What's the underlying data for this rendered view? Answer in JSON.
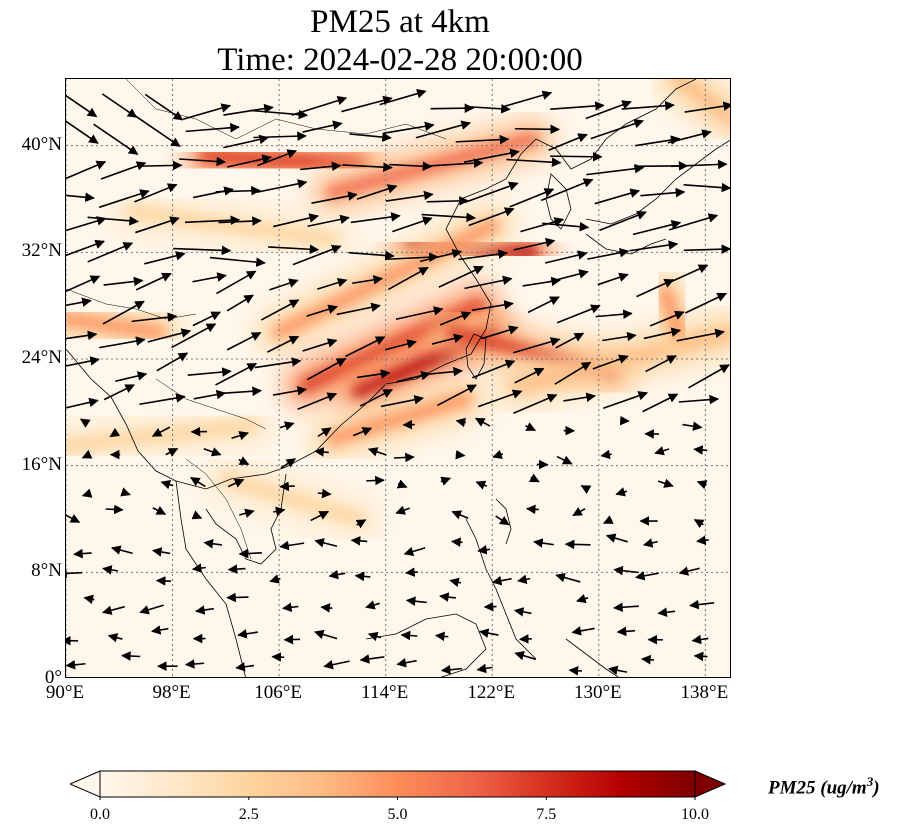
{
  "title": {
    "line1": "PM25 at 4km",
    "line2": "Time: 2024-02-28 20:00:00"
  },
  "map": {
    "extent": {
      "lon": [
        90,
        140
      ],
      "lat": [
        0,
        45
      ]
    },
    "x_ticks": [
      "90°E",
      "98°E",
      "106°E",
      "114°E",
      "122°E",
      "130°E",
      "138°E"
    ],
    "x_tick_values": [
      90,
      98,
      106,
      114,
      122,
      130,
      138
    ],
    "y_ticks": [
      "40°N",
      "32°N",
      "24°N",
      "16°N",
      "8°N",
      "0°"
    ],
    "y_tick_values": [
      40,
      32,
      24,
      16,
      8,
      0
    ],
    "gridlines": "dotted",
    "features": [
      "coastlines",
      "country borders",
      "wind vectors"
    ],
    "plumes": [
      {
        "from": [
          100.5,
          39.2
        ],
        "to": [
          112,
          38.6
        ],
        "level": 8
      },
      {
        "from": [
          110,
          36.5
        ],
        "to": [
          125,
          40.5
        ],
        "level": 6.5
      },
      {
        "from": [
          116,
          32.5
        ],
        "to": [
          125,
          32
        ],
        "level": 8.5
      },
      {
        "from": [
          106,
          26
        ],
        "to": [
          122,
          34
        ],
        "level": 5.5
      },
      {
        "from": [
          108,
          22
        ],
        "to": [
          121,
          28
        ],
        "level": 8
      },
      {
        "from": [
          112,
          21.5
        ],
        "to": [
          122,
          26
        ],
        "level": 9
      },
      {
        "from": [
          119,
          26
        ],
        "to": [
          131,
          23
        ],
        "level": 7.5
      },
      {
        "from": [
          90,
          27
        ],
        "to": [
          97,
          26
        ],
        "level": 5.5
      },
      {
        "from": [
          110,
          18
        ],
        "to": [
          120,
          21
        ],
        "level": 4.5
      },
      {
        "from": [
          124,
          22
        ],
        "to": [
          140,
          26
        ],
        "level": 4
      },
      {
        "from": [
          95,
          35
        ],
        "to": [
          110,
          33
        ],
        "level": 2.5
      },
      {
        "from": [
          90,
          17.5
        ],
        "to": [
          104,
          19
        ],
        "level": 3
      },
      {
        "from": [
          135,
          29
        ],
        "to": [
          136,
          26
        ],
        "level": 5
      },
      {
        "from": [
          136,
          45
        ],
        "to": [
          140,
          42
        ],
        "level": 4
      },
      {
        "from": [
          102,
          15
        ],
        "to": [
          112,
          12
        ],
        "level": 2
      }
    ]
  },
  "colorbar": {
    "ticks": [
      "0.0",
      "2.5",
      "5.0",
      "7.5",
      "10.0"
    ],
    "tick_values": [
      0,
      2.5,
      5,
      7.5,
      10
    ],
    "range": [
      0,
      10
    ],
    "extend": "both",
    "label": "PM25 (ug/m",
    "label_sup": "3",
    "label_end": ")",
    "colormap": "OrRd",
    "colors": [
      "#fff7ec",
      "#fee8c8",
      "#fdd49e",
      "#fdbb84",
      "#fc8d59",
      "#ef6548",
      "#d7301f",
      "#b30000",
      "#7f0000"
    ]
  }
}
